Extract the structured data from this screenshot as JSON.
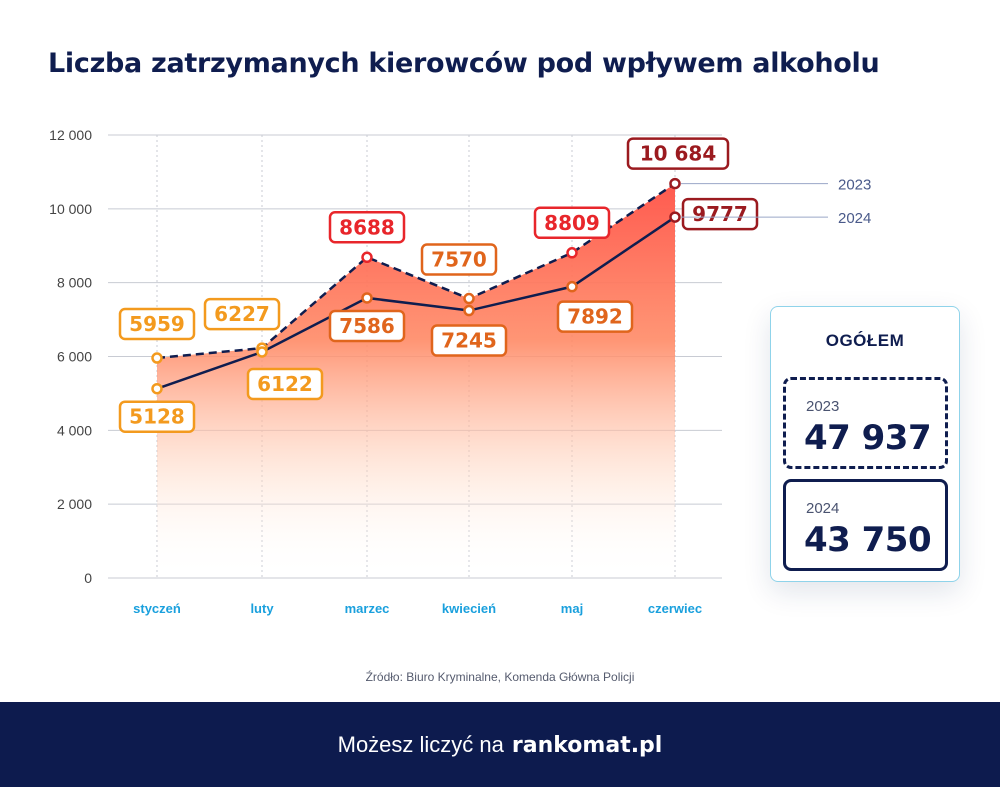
{
  "title": "Liczba zatrzymanych kierowców pod wpływem alkoholu",
  "chart_data": {
    "type": "line",
    "title": "Liczba zatrzymanych kierowców pod wpływem alkoholu",
    "categories": [
      "styczeń",
      "luty",
      "marzec",
      "kwiecień",
      "maj",
      "czerwiec"
    ],
    "ylim": [
      0,
      12000
    ],
    "y_ticks": [
      0,
      2000,
      4000,
      6000,
      8000,
      10000,
      12000
    ],
    "y_tick_labels": [
      "0",
      "2 000",
      "4 000",
      "6 000",
      "8 000",
      "10 000",
      "12 000"
    ],
    "grid": true,
    "series": [
      {
        "name": "2023",
        "style": "dashed",
        "values": [
          5959,
          6227,
          8688,
          7570,
          8809,
          10684
        ],
        "labels": [
          "5959",
          "6227",
          "8688",
          "7570",
          "8809",
          "10 684"
        ],
        "label_colors": [
          "#f39a1e",
          "#f39a1e",
          "#e8262b",
          "#e0651c",
          "#e8262b",
          "#9b1a1f"
        ],
        "area_fill": true
      },
      {
        "name": "2024",
        "style": "solid",
        "values": [
          5128,
          6122,
          7586,
          7245,
          7892,
          9777
        ],
        "labels": [
          "5128",
          "6122",
          "7586",
          "7245",
          "7892",
          "9777"
        ],
        "label_colors": [
          "#f39a1e",
          "#f39a1e",
          "#e0651c",
          "#e0651c",
          "#e0651c",
          "#9b1a1f"
        ]
      }
    ],
    "colors": {
      "line": "#0f1d4f",
      "category_label": "#1aa0dd",
      "area_top": "#ff5a4f",
      "area_mid": "#ff9a6a",
      "grid": "#c8cbd3",
      "tick_label": "#444444",
      "series_label": "#4a5a8a"
    }
  },
  "totals": {
    "title": "OGÓŁEM",
    "items": [
      {
        "year": "2023",
        "value": "47 937"
      },
      {
        "year": "2024",
        "value": "43 750"
      }
    ]
  },
  "source": "Źródło: Biuro Kryminalne, Komenda Główna Policji",
  "footer": {
    "tagline": "Możesz liczyć na",
    "brand": "rankomat.pl"
  }
}
